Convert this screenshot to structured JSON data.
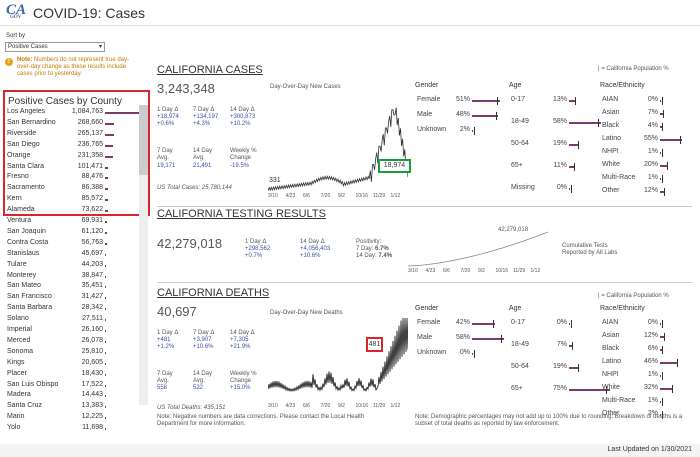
{
  "header": {
    "title": "COVID-19: Cases",
    "logo_text": "CA",
    "logo_sub": "GOV"
  },
  "sort": {
    "label": "Sort by",
    "selected": "Positive Cases"
  },
  "note": {
    "label": "Note:",
    "text": "Numbers do not represent true day-over-day change as these results include cases prior to yesterday."
  },
  "counties": {
    "title": "Positive Cases by County",
    "rows": [
      {
        "name": "Los Angeles",
        "value": "1,084,763",
        "frac": 1.0
      },
      {
        "name": "San Bernardino",
        "value": "268,660",
        "frac": 0.25
      },
      {
        "name": "Riverside",
        "value": "265,137",
        "frac": 0.24
      },
      {
        "name": "San Diego",
        "value": "236,765",
        "frac": 0.22
      },
      {
        "name": "Orange",
        "value": "231,358",
        "frac": 0.21
      },
      {
        "name": "Santa Clara",
        "value": "101,471",
        "frac": 0.09
      },
      {
        "name": "Fresno",
        "value": "88,476",
        "frac": 0.08
      },
      {
        "name": "Sacramento",
        "value": "86,388",
        "frac": 0.08
      },
      {
        "name": "Kern",
        "value": "85,572",
        "frac": 0.08
      },
      {
        "name": "Alameda",
        "value": "73,622",
        "frac": 0.07
      },
      {
        "name": "Ventura",
        "value": "69,931",
        "frac": 0.06
      },
      {
        "name": "San Joaquin",
        "value": "61,120",
        "frac": 0.06
      },
      {
        "name": "Contra Costa",
        "value": "56,763",
        "frac": 0.05
      },
      {
        "name": "Stanislaus",
        "value": "45,697",
        "frac": 0.04
      },
      {
        "name": "Tulare",
        "value": "44,203",
        "frac": 0.04
      },
      {
        "name": "Monterey",
        "value": "38,847",
        "frac": 0.04
      },
      {
        "name": "San Mateo",
        "value": "35,451",
        "frac": 0.03
      },
      {
        "name": "San Francisco",
        "value": "31,427",
        "frac": 0.03
      },
      {
        "name": "Santa Barbara",
        "value": "28,342",
        "frac": 0.03
      },
      {
        "name": "Solano",
        "value": "27,511",
        "frac": 0.03
      },
      {
        "name": "Imperial",
        "value": "26,160",
        "frac": 0.02
      },
      {
        "name": "Merced",
        "value": "26,078",
        "frac": 0.02
      },
      {
        "name": "Sonoma",
        "value": "25,810",
        "frac": 0.02
      },
      {
        "name": "Kings",
        "value": "20,605",
        "frac": 0.02
      },
      {
        "name": "Placer",
        "value": "18,430",
        "frac": 0.02
      },
      {
        "name": "San Luis Obispo",
        "value": "17,522",
        "frac": 0.02
      },
      {
        "name": "Madera",
        "value": "14,443",
        "frac": 0.01
      },
      {
        "name": "Santa Cruz",
        "value": "13,383",
        "frac": 0.01
      },
      {
        "name": "Marin",
        "value": "12,225",
        "frac": 0.01
      },
      {
        "name": "Yolo",
        "value": "11,698",
        "frac": 0.01
      }
    ]
  },
  "cases": {
    "title": "CALIFORNIA CASES",
    "total": "3,243,348",
    "d1_label": "1 Day Δ",
    "d1_val": "+18,974",
    "d1_pct": "+0.6%",
    "d7_label": "7 Day Δ",
    "d7_val": "+134,197",
    "d7_pct": "+4.3%",
    "d14_label": "14 Day Δ",
    "d14_val": "+300,873",
    "d14_pct": "+10.2%",
    "avg7_label": "7 Day",
    "avg7_sub": "Avg.",
    "avg7_val": "19,171",
    "avg14_label": "14 Day",
    "avg14_sub": "Avg.",
    "avg14_val": "21,491",
    "weekly_label": "Weekly %",
    "weekly_sub": "Change",
    "weekly_val": "-19.5%",
    "us_total": "US Total Cases: 25,780,144",
    "chart_title": "Day-Over-Day New Cases",
    "start_val": "331",
    "end_val": "18,974",
    "x_ticks": [
      "3/10",
      "4/23",
      "6/6",
      "7/20",
      "9/2",
      "10/16",
      "11/29",
      "1/12"
    ],
    "legend": "| = California Population %"
  },
  "cases_demo": {
    "gender_title": "Gender",
    "age_title": "Age",
    "race_title": "Race/Ethnicity",
    "gender": [
      {
        "name": "Female",
        "val": "51%",
        "frac": 0.51
      },
      {
        "name": "Male",
        "val": "48%",
        "frac": 0.48
      },
      {
        "name": "Unknown",
        "val": "2%",
        "frac": 0.02
      }
    ],
    "age": [
      {
        "name": "0-17",
        "val": "13%",
        "frac": 0.13
      },
      {
        "name": "18-49",
        "val": "58%",
        "frac": 0.58
      },
      {
        "name": "50-64",
        "val": "19%",
        "frac": 0.19
      },
      {
        "name": "65+",
        "val": "11%",
        "frac": 0.11
      },
      {
        "name": "Missing",
        "val": "0%",
        "frac": 0.0
      }
    ],
    "race": [
      {
        "name": "AIAN",
        "val": "0%",
        "frac": 0.0
      },
      {
        "name": "Asian",
        "val": "7%",
        "frac": 0.07
      },
      {
        "name": "Black",
        "val": "4%",
        "frac": 0.04
      },
      {
        "name": "Latino",
        "val": "55%",
        "frac": 0.55
      },
      {
        "name": "NHPI",
        "val": "1%",
        "frac": 0.01
      },
      {
        "name": "White",
        "val": "20%",
        "frac": 0.2
      },
      {
        "name": "Multi-Race",
        "val": "1%",
        "frac": 0.01
      },
      {
        "name": "Other",
        "val": "12%",
        "frac": 0.12
      }
    ]
  },
  "testing": {
    "title": "CALIFORNIA TESTING RESULTS",
    "total": "42,279,018",
    "d1_label": "1 Day Δ",
    "d1_val": "+298,562",
    "d1_pct": "+0.7%",
    "d14_label": "14 Day Δ",
    "d14_val": "+4,056,403",
    "d14_pct": "+10.6%",
    "pos_label": "Positivity:",
    "pos7_label": "7 Day:",
    "pos7": "6.7%",
    "pos14_label": "14 Day:",
    "pos14": "7.4%",
    "chart_end": "42,279,018",
    "x_ticks": [
      "3/10",
      "4/23",
      "6/6",
      "7/20",
      "9/2",
      "10/16",
      "11/29",
      "1/12"
    ],
    "caption1": "Cumulative Tests",
    "caption2": "Reported by All Labs"
  },
  "deaths": {
    "title": "CALIFORNIA DEATHS",
    "total": "40,697",
    "d1_label": "1 Day Δ",
    "d1_val": "+481",
    "d1_pct": "+1.2%",
    "d7_label": "7 Day Δ",
    "d7_val": "+3,907",
    "d7_pct": "+10.6%",
    "d14_label": "14 Day Δ",
    "d14_val": "+7,305",
    "d14_pct": "+21.9%",
    "avg7_label": "7 Day",
    "avg7_sub": "Avg.",
    "avg7_val": "558",
    "avg14_label": "14 Day",
    "avg14_sub": "Avg.",
    "avg14_val": "522",
    "weekly_label": "Weekly %",
    "weekly_sub": "Change",
    "weekly_val": "+15.0%",
    "us_total": "US Total Deaths: 435,151",
    "note": "Note: Negative numbers are data corrections. Please contact the Local Health Department for more information.",
    "chart_title": "Day-Over-Day New Deaths",
    "end_val": "481",
    "x_ticks": [
      "3/10",
      "4/23",
      "6/6",
      "7/20",
      "9/2",
      "10/16",
      "11/29",
      "1/12"
    ],
    "legend": "| = California Population %"
  },
  "deaths_demo": {
    "gender_title": "Gender",
    "age_title": "Age",
    "race_title": "Race/Ethnicity",
    "gender": [
      {
        "name": "Female",
        "val": "42%",
        "frac": 0.42
      },
      {
        "name": "Male",
        "val": "58%",
        "frac": 0.58
      },
      {
        "name": "Unknown",
        "val": "0%",
        "frac": 0.0
      }
    ],
    "age": [
      {
        "name": "0-17",
        "val": "0%",
        "frac": 0.0
      },
      {
        "name": "18-49",
        "val": "7%",
        "frac": 0.07
      },
      {
        "name": "50-64",
        "val": "19%",
        "frac": 0.19
      },
      {
        "name": "65+",
        "val": "75%",
        "frac": 0.75
      }
    ],
    "race": [
      {
        "name": "AIAN",
        "val": "0%",
        "frac": 0.0
      },
      {
        "name": "Asian",
        "val": "12%",
        "frac": 0.12
      },
      {
        "name": "Black",
        "val": "6%",
        "frac": 0.06
      },
      {
        "name": "Latino",
        "val": "46%",
        "frac": 0.46
      },
      {
        "name": "NHPI",
        "val": "1%",
        "frac": 0.01
      },
      {
        "name": "White",
        "val": "32%",
        "frac": 0.32
      },
      {
        "name": "Multi-Race",
        "val": "1%",
        "frac": 0.01
      },
      {
        "name": "Other",
        "val": "2%",
        "frac": 0.02
      }
    ]
  },
  "demo_note": "Note: Demographic percentages may not add up to 100% due to rounding. Breakdown of deaths is a subset of total deaths as reported by law enforcement.",
  "footer": {
    "text": "Last Updated on 1/30/2021"
  }
}
